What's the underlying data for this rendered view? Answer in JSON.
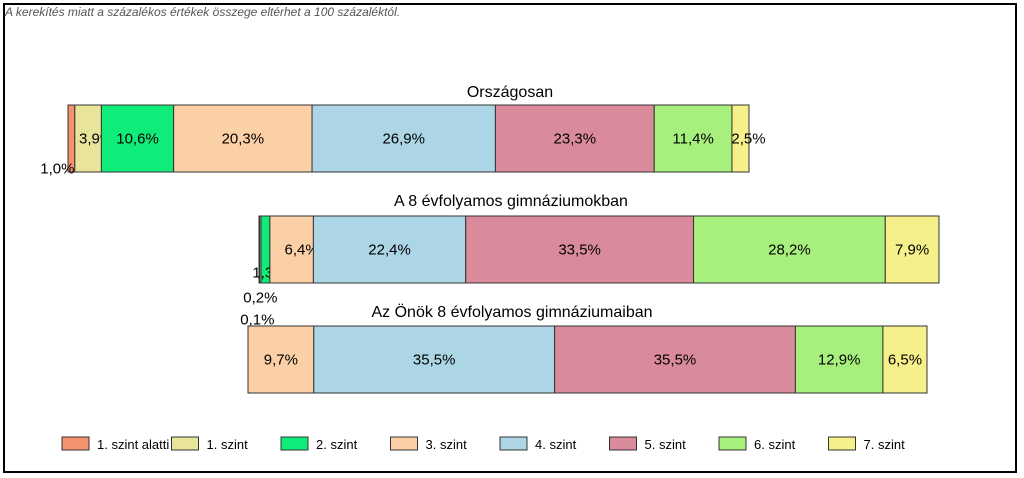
{
  "note": "A kerekítés miatt a  százalékos értékek összege eltérhet a 100 százaléktól.",
  "colors": [
    "#F4926E",
    "#E8E59A",
    "#10EC7A",
    "#FCD0A6",
    "#ACD5E5",
    "#D98A9B",
    "#A7F07E",
    "#F5F08A"
  ],
  "chart_data": {
    "type": "bar",
    "orientation": "horizontal-stacked-100",
    "categories": [
      "1. szint alatti",
      "1. szint",
      "2. szint",
      "3. szint",
      "4. szint",
      "5. szint",
      "6. szint",
      "7. szint"
    ],
    "series": [
      {
        "name": "Országosan",
        "values": [
          1.0,
          3.9,
          10.6,
          20.3,
          26.9,
          23.3,
          11.4,
          2.5
        ],
        "labels": [
          "1,0%",
          "3,9%",
          "10,6%",
          "20,3%",
          "26,9%",
          "23,3%",
          "11,4%",
          "2,5%"
        ]
      },
      {
        "name": "A 8 évfolyamos gimnáziumokban",
        "values": [
          0.1,
          0.2,
          1.3,
          6.4,
          22.4,
          33.5,
          28.2,
          7.9
        ],
        "labels": [
          "0,1%",
          "0,2%",
          "1,3%",
          "6,4%",
          "22,4%",
          "33,5%",
          "28,2%",
          "7,9%"
        ]
      },
      {
        "name": "Az Önök 8 évfolyamos gimnáziumaiban",
        "values": [
          0,
          0,
          0,
          9.7,
          35.5,
          35.5,
          12.9,
          6.5
        ],
        "labels": [
          "",
          "",
          "",
          "9,7%",
          "35,5%",
          "35,5%",
          "12,9%",
          "6,5%"
        ]
      }
    ],
    "legend_position": "bottom"
  }
}
